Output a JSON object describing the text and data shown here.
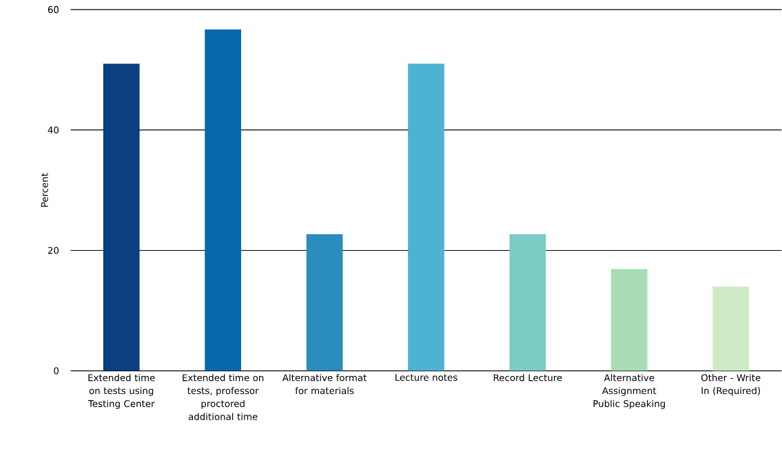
{
  "chart_data": {
    "type": "bar",
    "ylabel": "Percent",
    "categories": [
      "Extended time on tests using Testing Center",
      "Extended time on tests, professor proctored additional time",
      "Alternative format for materials",
      "Lecture notes",
      "Record Lecture",
      "Alternative Assignment Public Speaking",
      "Other - Write In (Required)"
    ],
    "values": [
      51.0,
      56.7,
      22.7,
      51.0,
      22.7,
      16.9,
      14.0
    ],
    "colors": [
      "#0b3f80",
      "#0868ac",
      "#2b8cbe",
      "#4eb3d3",
      "#7bccc4",
      "#a8ddb5",
      "#ccebc5"
    ],
    "ylim": [
      0,
      60
    ],
    "yticks": [
      0,
      20,
      40,
      60
    ],
    "grid": "y"
  }
}
